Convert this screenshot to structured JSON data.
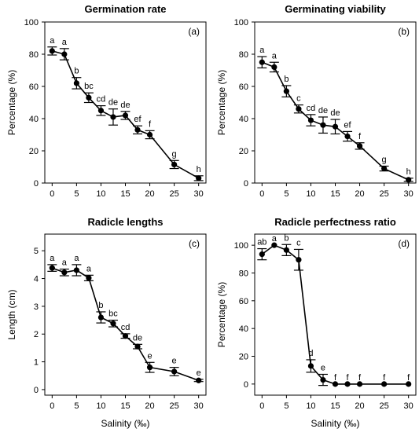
{
  "chart_data": [
    {
      "type": "line",
      "title": "Germination rate",
      "panel_label": "(a)",
      "xlabel": "",
      "ylabel": "Percentage (%)",
      "xlim": [
        -1.5,
        31.5
      ],
      "ylim": [
        0,
        100
      ],
      "xticks": [
        0,
        5,
        10,
        15,
        20,
        25,
        30
      ],
      "yticks": [
        0,
        20,
        40,
        60,
        80,
        100
      ],
      "x": [
        0,
        2.5,
        5,
        7.5,
        10,
        12.5,
        15,
        17.5,
        20,
        25,
        30
      ],
      "y": [
        82,
        80,
        62,
        53,
        45,
        41,
        42,
        33,
        30,
        11.5,
        3
      ],
      "err": [
        2.5,
        3.5,
        3.5,
        3,
        3,
        5,
        2.5,
        2.5,
        2.5,
        2.5,
        1.5
      ],
      "letters": [
        "a",
        "a",
        "b",
        "bc",
        "cd",
        "de",
        "de",
        "ef",
        "f",
        "g",
        "h"
      ],
      "grid": false
    },
    {
      "type": "line",
      "title": "Germinating viability",
      "panel_label": "(b)",
      "xlabel": "",
      "ylabel": "Percentage (%)",
      "xlim": [
        -1.5,
        31.5
      ],
      "ylim": [
        0,
        100
      ],
      "xticks": [
        0,
        5,
        10,
        15,
        20,
        25,
        30
      ],
      "yticks": [
        0,
        20,
        40,
        60,
        80,
        100
      ],
      "x": [
        0,
        2.5,
        5,
        7.5,
        10,
        12.5,
        15,
        17.5,
        20,
        25,
        30
      ],
      "y": [
        75,
        72,
        57,
        46,
        39,
        36,
        35,
        29,
        23,
        9,
        2
      ],
      "err": [
        3.5,
        3,
        3.5,
        2.5,
        3.5,
        5,
        4.5,
        3,
        2,
        1.5,
        1
      ],
      "letters": [
        "a",
        "a",
        "b",
        "c",
        "cd",
        "de",
        "de",
        "ef",
        "f",
        "g",
        "h"
      ],
      "grid": false
    },
    {
      "type": "line",
      "title": "Radicle lengths",
      "panel_label": "(c)",
      "xlabel": "Salinity (‰)",
      "ylabel": "Length (cm)",
      "xlim": [
        -1.5,
        31.5
      ],
      "ylim": [
        -0.2,
        5.6
      ],
      "xticks": [
        0,
        5,
        10,
        15,
        20,
        25,
        30
      ],
      "yticks": [
        0,
        1,
        2,
        3,
        4,
        5
      ],
      "x": [
        0,
        2.5,
        5,
        7.5,
        10,
        12.5,
        15,
        17.5,
        20,
        25,
        30
      ],
      "y": [
        4.38,
        4.22,
        4.3,
        4.02,
        2.6,
        2.38,
        1.93,
        1.55,
        0.8,
        0.65,
        0.33
      ],
      "err": [
        0.12,
        0.12,
        0.2,
        0.1,
        0.2,
        0.12,
        0.08,
        0.08,
        0.18,
        0.15,
        0.04
      ],
      "letters": [
        "a",
        "a",
        "a",
        "a",
        "b",
        "bc",
        "cd",
        "de",
        "e",
        "e",
        "e"
      ],
      "grid": false
    },
    {
      "type": "line",
      "title": "Radicle perfectness ratio",
      "panel_label": "(d)",
      "xlabel": "Salinity (‰)",
      "ylabel": "Percentage (%)",
      "xlim": [
        -1.5,
        31.5
      ],
      "ylim": [
        -8,
        108
      ],
      "xticks": [
        0,
        5,
        10,
        15,
        20,
        25,
        30
      ],
      "yticks": [
        0,
        20,
        40,
        60,
        80,
        100
      ],
      "x": [
        0,
        2.5,
        5,
        7.5,
        10,
        12.5,
        15,
        17.5,
        20,
        25,
        30
      ],
      "y": [
        93.5,
        100,
        96.5,
        89.5,
        13,
        3,
        0,
        0,
        0,
        0,
        0
      ],
      "err": [
        4,
        0,
        4,
        7.5,
        4.5,
        4,
        0,
        0,
        0,
        0,
        0
      ],
      "letters": [
        "ab",
        "a",
        "b",
        "c",
        "d",
        "e",
        "f",
        "f",
        "f",
        "f",
        "f"
      ],
      "grid": false
    }
  ]
}
